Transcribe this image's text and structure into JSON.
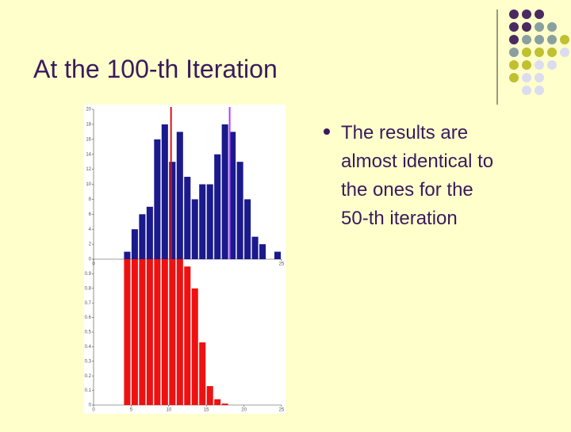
{
  "title": "At the 100-th Iteration",
  "bullet_lines": [
    "The results are",
    "almost identical to",
    "the ones for the",
    "50-th iteration"
  ],
  "chart_data": [
    {
      "type": "bar",
      "color": "#1a1a8c",
      "x": [
        4,
        5,
        6,
        7,
        8,
        9,
        10,
        11,
        12,
        13,
        14,
        15,
        16,
        17,
        18,
        19,
        20,
        21,
        22,
        24
      ],
      "values": [
        1,
        4,
        6,
        7,
        16,
        18,
        13,
        17,
        11,
        8,
        10,
        10,
        14,
        18,
        17,
        13,
        8,
        3,
        2,
        1
      ],
      "vlines": [
        {
          "x": 10.3,
          "color": "#e01010"
        },
        {
          "x": 18.1,
          "color": "#b040ff"
        }
      ],
      "xlim": [
        0,
        25
      ],
      "ylim": [
        0,
        20
      ],
      "xticks": [
        0,
        25
      ],
      "yticks": [
        0,
        2,
        4,
        6,
        8,
        10,
        12,
        14,
        16,
        18,
        20
      ]
    },
    {
      "type": "bar",
      "color": "#ee1111",
      "x": [
        4,
        5,
        6,
        7,
        8,
        9,
        10,
        11,
        12,
        13,
        14,
        15,
        16,
        17
      ],
      "values": [
        1,
        1,
        1,
        1,
        1,
        1,
        1,
        1,
        0.95,
        0.8,
        0.43,
        0.13,
        0.04,
        0.01
      ],
      "xlim": [
        0,
        25
      ],
      "ylim": [
        0,
        1
      ],
      "xticks": [
        0,
        5,
        10,
        15,
        20,
        25
      ],
      "yticks": [
        0,
        0.1,
        0.2,
        0.3,
        0.4,
        0.5,
        0.6,
        0.7,
        0.8,
        0.9
      ]
    }
  ]
}
